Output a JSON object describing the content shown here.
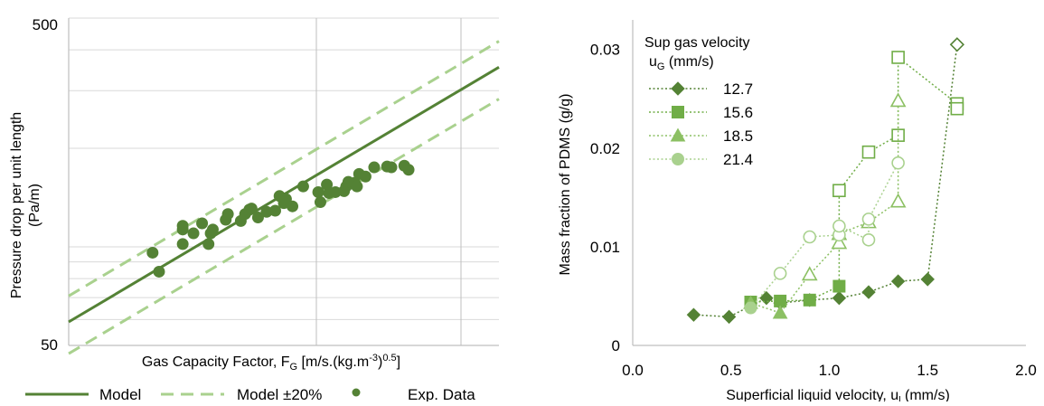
{
  "chart_data": [
    {
      "type": "scatter",
      "title": "",
      "xlabel": "Gas Capacity Factor, F",
      "xlabel_sub": "G",
      "xlabel_tail": " [m/s.(kg.m",
      "xlabel_sup": "-3",
      "xlabel_end": ")",
      "xlabel_sup2": "0.5",
      "xlabel_close": "]",
      "ylabel_line1": "Pressure drop per unit length",
      "ylabel_line2": "(Pa/m)",
      "yscale": "log",
      "ylim": [
        50,
        500
      ],
      "ytick_labels": [
        "500",
        "50"
      ],
      "legend": {
        "placement": "bottom",
        "model_label": "Model",
        "band_label": "Model ±20%",
        "data_label": "Exp. Data"
      },
      "colors": {
        "model": "#548235",
        "band": "#a9d18e",
        "points": "#548235",
        "grid": "#d9d9d9",
        "axis": "#bfbfbf"
      },
      "model_line": {
        "x": [
          0.0,
          1.0
        ],
        "y": [
          59,
          354
        ]
      },
      "band_upper": {
        "x": [
          0.0,
          1.0
        ],
        "y": [
          70.8,
          425
        ]
      },
      "band_lower": {
        "x": [
          0.0,
          1.0
        ],
        "y": [
          47.2,
          283
        ]
      },
      "exp_data": {
        "x": [
          0.195,
          0.21,
          0.265,
          0.265,
          0.265,
          0.29,
          0.31,
          0.325,
          0.33,
          0.335,
          0.365,
          0.37,
          0.4,
          0.41,
          0.42,
          0.425,
          0.44,
          0.46,
          0.48,
          0.49,
          0.5,
          0.505,
          0.52,
          0.545,
          0.58,
          0.585,
          0.6,
          0.605,
          0.62,
          0.64,
          0.645,
          0.65,
          0.66,
          0.665,
          0.67,
          0.675,
          0.69,
          0.71,
          0.74,
          0.75,
          0.78,
          0.79
        ],
        "y": [
          96,
          84,
          102,
          113,
          116,
          110,
          118,
          102,
          110,
          113,
          121,
          126,
          120,
          126,
          130,
          131,
          123,
          128,
          129,
          143,
          136,
          140,
          133,
          153,
          147,
          137,
          155,
          146,
          147,
          148,
          153,
          158,
          156,
          157,
          153,
          167,
          164,
          175,
          176,
          175,
          177,
          172
        ]
      }
    },
    {
      "type": "line",
      "title": "",
      "xlabel": "Superficial liquid velocity, u",
      "xlabel_sub": "l",
      "xlabel_tail": " (mm/s)",
      "ylabel": "Mass fraction of PDMS  (g/g)",
      "xlim": [
        0.0,
        2.0
      ],
      "ylim": [
        0.0,
        0.033
      ],
      "xticks": [
        0.0,
        0.5,
        1.0,
        1.5,
        2.0
      ],
      "xtick_labels": [
        "0.0",
        "0.5",
        "1.0",
        "1.5",
        "2.0"
      ],
      "yticks": [
        0.0,
        0.01,
        0.02,
        0.03
      ],
      "ytick_labels": [
        "0",
        "0.01",
        "0.02",
        "0.03"
      ],
      "legend": {
        "placement": "top-left",
        "title_line1": "Sup gas velocity",
        "title_line2_main": "u",
        "title_line2_sub": "G",
        "title_line2_tail": "  (mm/s)"
      },
      "series": [
        {
          "name": "12.7",
          "marker": "diamond",
          "color": "#548235",
          "x": [
            0.31,
            0.49,
            0.68,
            0.75,
            0.9,
            1.05,
            1.2,
            1.35,
            1.5,
            1.65
          ],
          "y": [
            0.0031,
            0.0029,
            0.0048,
            0.0043,
            0.0046,
            0.0048,
            0.0054,
            0.0065,
            0.0067,
            0.0305
          ],
          "open": [
            false,
            false,
            false,
            false,
            false,
            false,
            false,
            false,
            false,
            true
          ]
        },
        {
          "name": "15.6",
          "marker": "square",
          "color": "#70ad47",
          "x": [
            0.6,
            0.75,
            0.9,
            1.05,
            1.05,
            1.2,
            1.35,
            1.35,
            1.65,
            1.65
          ],
          "y": [
            0.0044,
            0.0045,
            0.0046,
            0.006,
            0.0157,
            0.0196,
            0.0213,
            0.0292,
            0.0245,
            0.024
          ],
          "open": [
            false,
            false,
            false,
            false,
            true,
            true,
            true,
            true,
            true,
            true
          ]
        },
        {
          "name": "18.5",
          "marker": "triangle",
          "color": "#8cc063",
          "x": [
            0.6,
            0.75,
            0.9,
            1.05,
            1.05,
            1.2,
            1.35,
            1.35
          ],
          "y": [
            0.0043,
            0.0033,
            0.0072,
            0.0104,
            0.0113,
            0.0125,
            0.0146,
            0.0248
          ],
          "open": [
            false,
            false,
            true,
            true,
            true,
            true,
            true,
            true
          ]
        },
        {
          "name": "21.4",
          "marker": "circle",
          "color": "#a9d18e",
          "x": [
            0.6,
            0.75,
            0.9,
            1.05,
            1.05,
            1.2,
            1.2,
            1.35
          ],
          "y": [
            0.0038,
            0.0073,
            0.011,
            0.0112,
            0.0121,
            0.0107,
            0.0128,
            0.0185
          ],
          "open": [
            false,
            true,
            true,
            true,
            true,
            true,
            true,
            true
          ]
        }
      ]
    }
  ]
}
